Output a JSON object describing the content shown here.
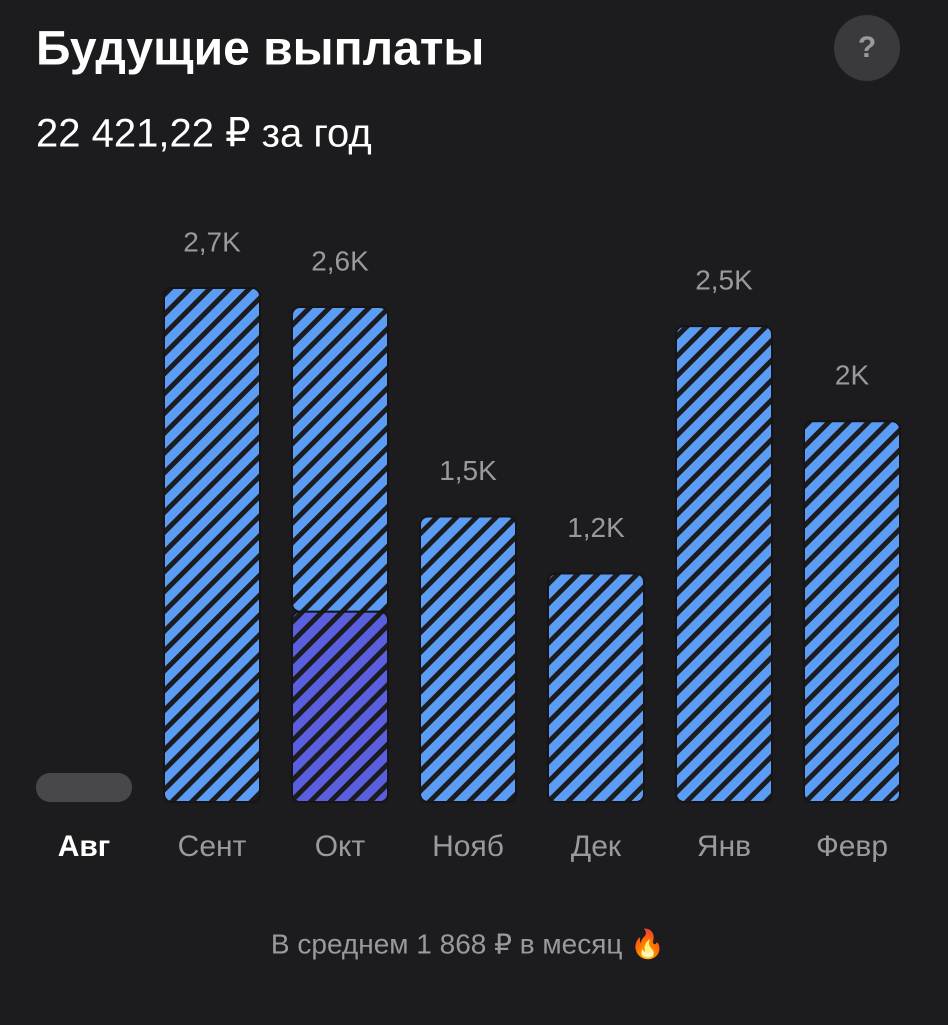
{
  "header": {
    "title": "Будущие выплаты",
    "subtitle": "22 421,22 ₽ за год",
    "help": "?"
  },
  "chart_data": {
    "type": "bar",
    "categories": [
      "Авг",
      "Сент",
      "Окт",
      "Нояб",
      "Дек",
      "Янв",
      "Февр"
    ],
    "series": [
      {
        "color": "#5a5fe0",
        "values": [
          null,
          null,
          1000,
          null,
          null,
          null,
          null
        ]
      },
      {
        "color": "#5b9cf5",
        "values": [
          null,
          2700,
          1600,
          1500,
          1200,
          2500,
          2000
        ]
      }
    ],
    "totals": [
      null,
      2700,
      2600,
      1500,
      1200,
      2500,
      2000
    ],
    "total_labels": [
      null,
      "2,7K",
      "2,6K",
      "1,5K",
      "1,2K",
      "2,5K",
      "2K"
    ]
  },
  "footer": {
    "text": "В среднем 1 868 ₽ в месяц 🔥"
  }
}
